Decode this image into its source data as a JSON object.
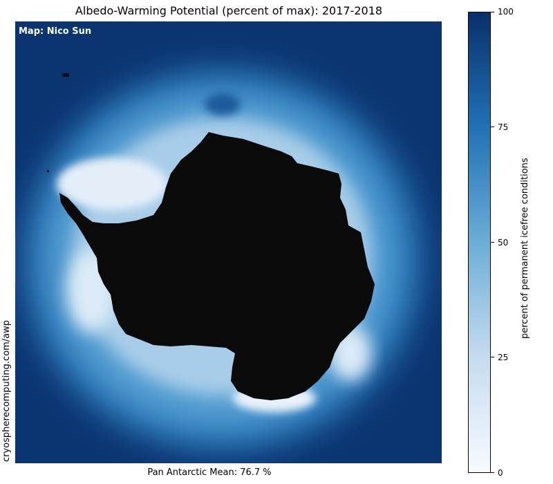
{
  "title": "Albedo-Warming Potential (percent of max): 2017-2018",
  "credit": "Map: Nico Sun",
  "source_url": "cryospherecomputing.com/awp",
  "footer": "Pan Antarctic Mean: 76.7 %",
  "colorbar": {
    "label": "percent of permanent icefree conditions",
    "ticks": [
      {
        "value": 0,
        "label": "0"
      },
      {
        "value": 25,
        "label": "25"
      },
      {
        "value": 50,
        "label": "50"
      },
      {
        "value": 75,
        "label": "75"
      },
      {
        "value": 100,
        "label": "100"
      }
    ],
    "range": [
      0,
      100
    ],
    "colormap": [
      "#f7fbff",
      "#c6dbef",
      "#6baed6",
      "#2171b5",
      "#08306b"
    ]
  },
  "map_colors": {
    "open_ocean": "#0b3570",
    "land": "#0a0a0a",
    "ice_low": "#e3eef9"
  },
  "chart_data": {
    "type": "heatmap",
    "title": "Albedo-Warming Potential (percent of max): 2017-2018",
    "colorbar_label": "percent of permanent icefree conditions",
    "value_range": [
      0,
      100
    ],
    "pan_antarctic_mean": 76.7,
    "unit": "%"
  }
}
